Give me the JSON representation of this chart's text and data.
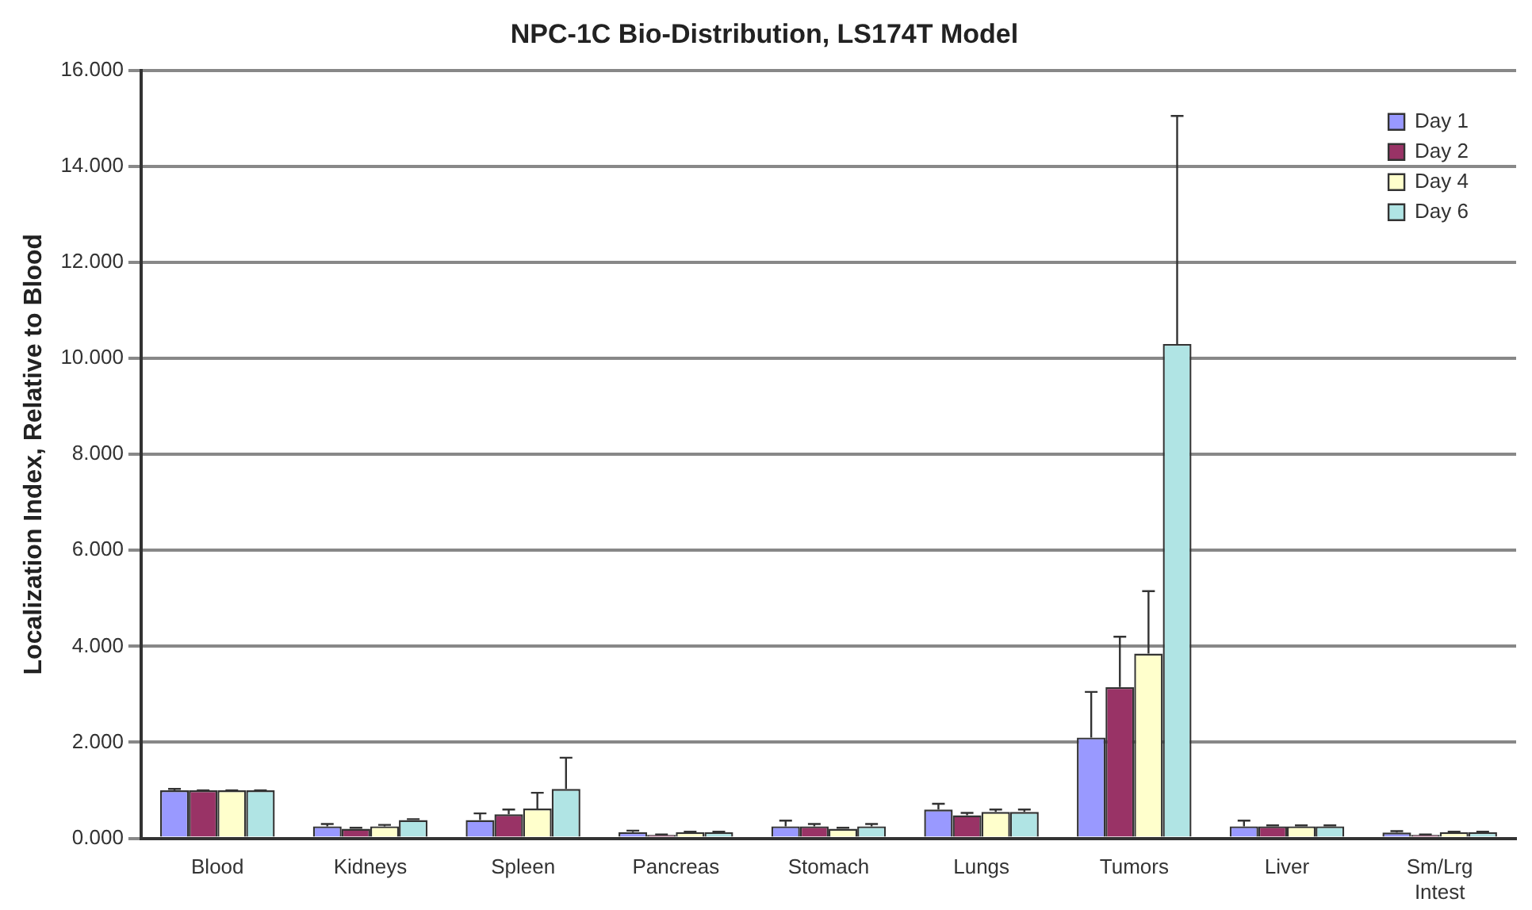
{
  "chart_data": {
    "type": "bar",
    "title": "NPC-1C Bio-Distribution, LS174T Model",
    "ylabel": "Localization Index, Relative to Blood",
    "categories": [
      "Blood",
      "Kidneys",
      "Spleen",
      "Pancreas",
      "Stomach",
      "Lungs",
      "Tumors",
      "Liver",
      "Sm/Lrg Intest"
    ],
    "series": [
      {
        "name": "Day 1",
        "color": "#9999ff",
        "values": [
          1.0,
          0.25,
          0.38,
          0.13,
          0.25,
          0.6,
          2.1,
          0.25,
          0.12
        ],
        "errors": [
          [
            1.0,
            1.03
          ],
          [
            0.25,
            0.3
          ],
          [
            0.38,
            0.52
          ],
          [
            0.13,
            0.16
          ],
          [
            0.25,
            0.37
          ],
          [
            0.6,
            0.72
          ],
          [
            2.1,
            3.05
          ],
          [
            0.25,
            0.37
          ],
          [
            0.12,
            0.15
          ]
        ]
      },
      {
        "name": "Day 2",
        "color": "#993366",
        "values": [
          1.0,
          0.2,
          0.5,
          0.07,
          0.25,
          0.48,
          3.15,
          0.25,
          0.07
        ],
        "errors": [
          [
            1.0,
            1.0
          ],
          [
            0.2,
            0.22
          ],
          [
            0.5,
            0.6
          ],
          [
            0.07,
            0.08
          ],
          [
            0.25,
            0.3
          ],
          [
            0.48,
            0.53
          ],
          [
            3.15,
            4.2
          ],
          [
            0.25,
            0.27
          ],
          [
            0.07,
            0.08
          ]
        ]
      },
      {
        "name": "Day 4",
        "color": "#ffffcc",
        "values": [
          1.0,
          0.25,
          0.62,
          0.13,
          0.2,
          0.55,
          3.85,
          0.25,
          0.13
        ],
        "errors": [
          [
            1.0,
            1.0
          ],
          [
            0.25,
            0.28
          ],
          [
            0.62,
            0.95
          ],
          [
            0.13,
            0.14
          ],
          [
            0.2,
            0.22
          ],
          [
            0.55,
            0.6
          ],
          [
            3.85,
            5.15
          ],
          [
            0.25,
            0.27
          ],
          [
            0.13,
            0.14
          ]
        ]
      },
      {
        "name": "Day 6",
        "color": "#b0e4e4",
        "values": [
          1.0,
          0.38,
          1.03,
          0.13,
          0.25,
          0.55,
          10.3,
          0.25,
          0.13
        ],
        "errors": [
          [
            1.0,
            1.0
          ],
          [
            0.38,
            0.4
          ],
          [
            1.03,
            1.68
          ],
          [
            0.13,
            0.14
          ],
          [
            0.25,
            0.3
          ],
          [
            0.55,
            0.6
          ],
          [
            10.3,
            15.05
          ],
          [
            0.25,
            0.27
          ],
          [
            0.13,
            0.14
          ]
        ]
      }
    ],
    "ylim": [
      0,
      16
    ],
    "yticks": [
      {
        "value": 0,
        "label": "0.000"
      },
      {
        "value": 2,
        "label": "2.000"
      },
      {
        "value": 4,
        "label": "4.000"
      },
      {
        "value": 6,
        "label": "6.000"
      },
      {
        "value": 8,
        "label": "8.000"
      },
      {
        "value": 10,
        "label": "10.000"
      },
      {
        "value": 12,
        "label": "12.000"
      },
      {
        "value": 14,
        "label": "14.000"
      },
      {
        "value": 16,
        "label": "16.000"
      }
    ],
    "grid": "y",
    "legend": "top right"
  }
}
